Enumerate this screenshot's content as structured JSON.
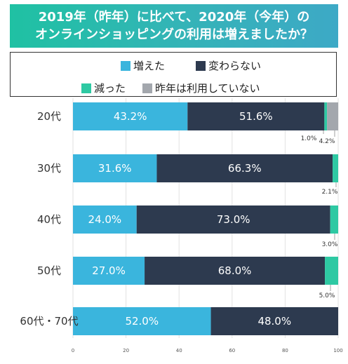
{
  "title": {
    "line1": "2019年（昨年）に比べて、2020年（今年）の",
    "line2": "オンラインショッピングの利用は増えましたか？"
  },
  "legend": [
    {
      "label": "増えた",
      "color": "#3ab5dd"
    },
    {
      "label": "変わらない",
      "color": "#2d3a4f"
    },
    {
      "label": "減った",
      "color": "#2ec9a3"
    },
    {
      "label": "昨年は利用していない",
      "color": "#a3a7ad"
    }
  ],
  "chart_data": {
    "type": "bar",
    "orientation": "horizontal",
    "stacked": true,
    "title": "2019年（昨年）に比べて、2020年（今年）のオンラインショッピングの利用は増えましたか？",
    "categories": [
      "20代",
      "30代",
      "40代",
      "50代",
      "60代・70代"
    ],
    "series": [
      {
        "name": "増えた",
        "color": "#3ab5dd",
        "values": [
          43.2,
          31.6,
          24.0,
          27.0,
          52.0
        ]
      },
      {
        "name": "変わらない",
        "color": "#2d3a4f",
        "values": [
          51.6,
          66.3,
          73.0,
          68.0,
          48.0
        ]
      },
      {
        "name": "減った",
        "color": "#2ec9a3",
        "values": [
          1.0,
          2.1,
          3.0,
          5.0,
          0
        ]
      },
      {
        "name": "昨年は利用していない",
        "color": "#a3a7ad",
        "values": [
          4.2,
          0,
          0,
          0,
          0
        ]
      }
    ],
    "bar_labels": [
      [
        "43.2%",
        "51.6%"
      ],
      [
        "31.6%",
        "66.3%"
      ],
      [
        "24.0%",
        "73.0%"
      ],
      [
        "27.0%",
        "68.0%"
      ],
      [
        "52.0%",
        "48.0%"
      ]
    ],
    "small_labels": [
      [
        "1.0%",
        "4.2%"
      ],
      [
        "2.1%"
      ],
      [
        "3.0%"
      ],
      [
        "5.0%"
      ],
      []
    ],
    "xlim": [
      0,
      100
    ],
    "xticks": [
      0,
      20,
      40,
      60,
      80,
      100
    ],
    "grid": true,
    "legend_position": "top"
  }
}
